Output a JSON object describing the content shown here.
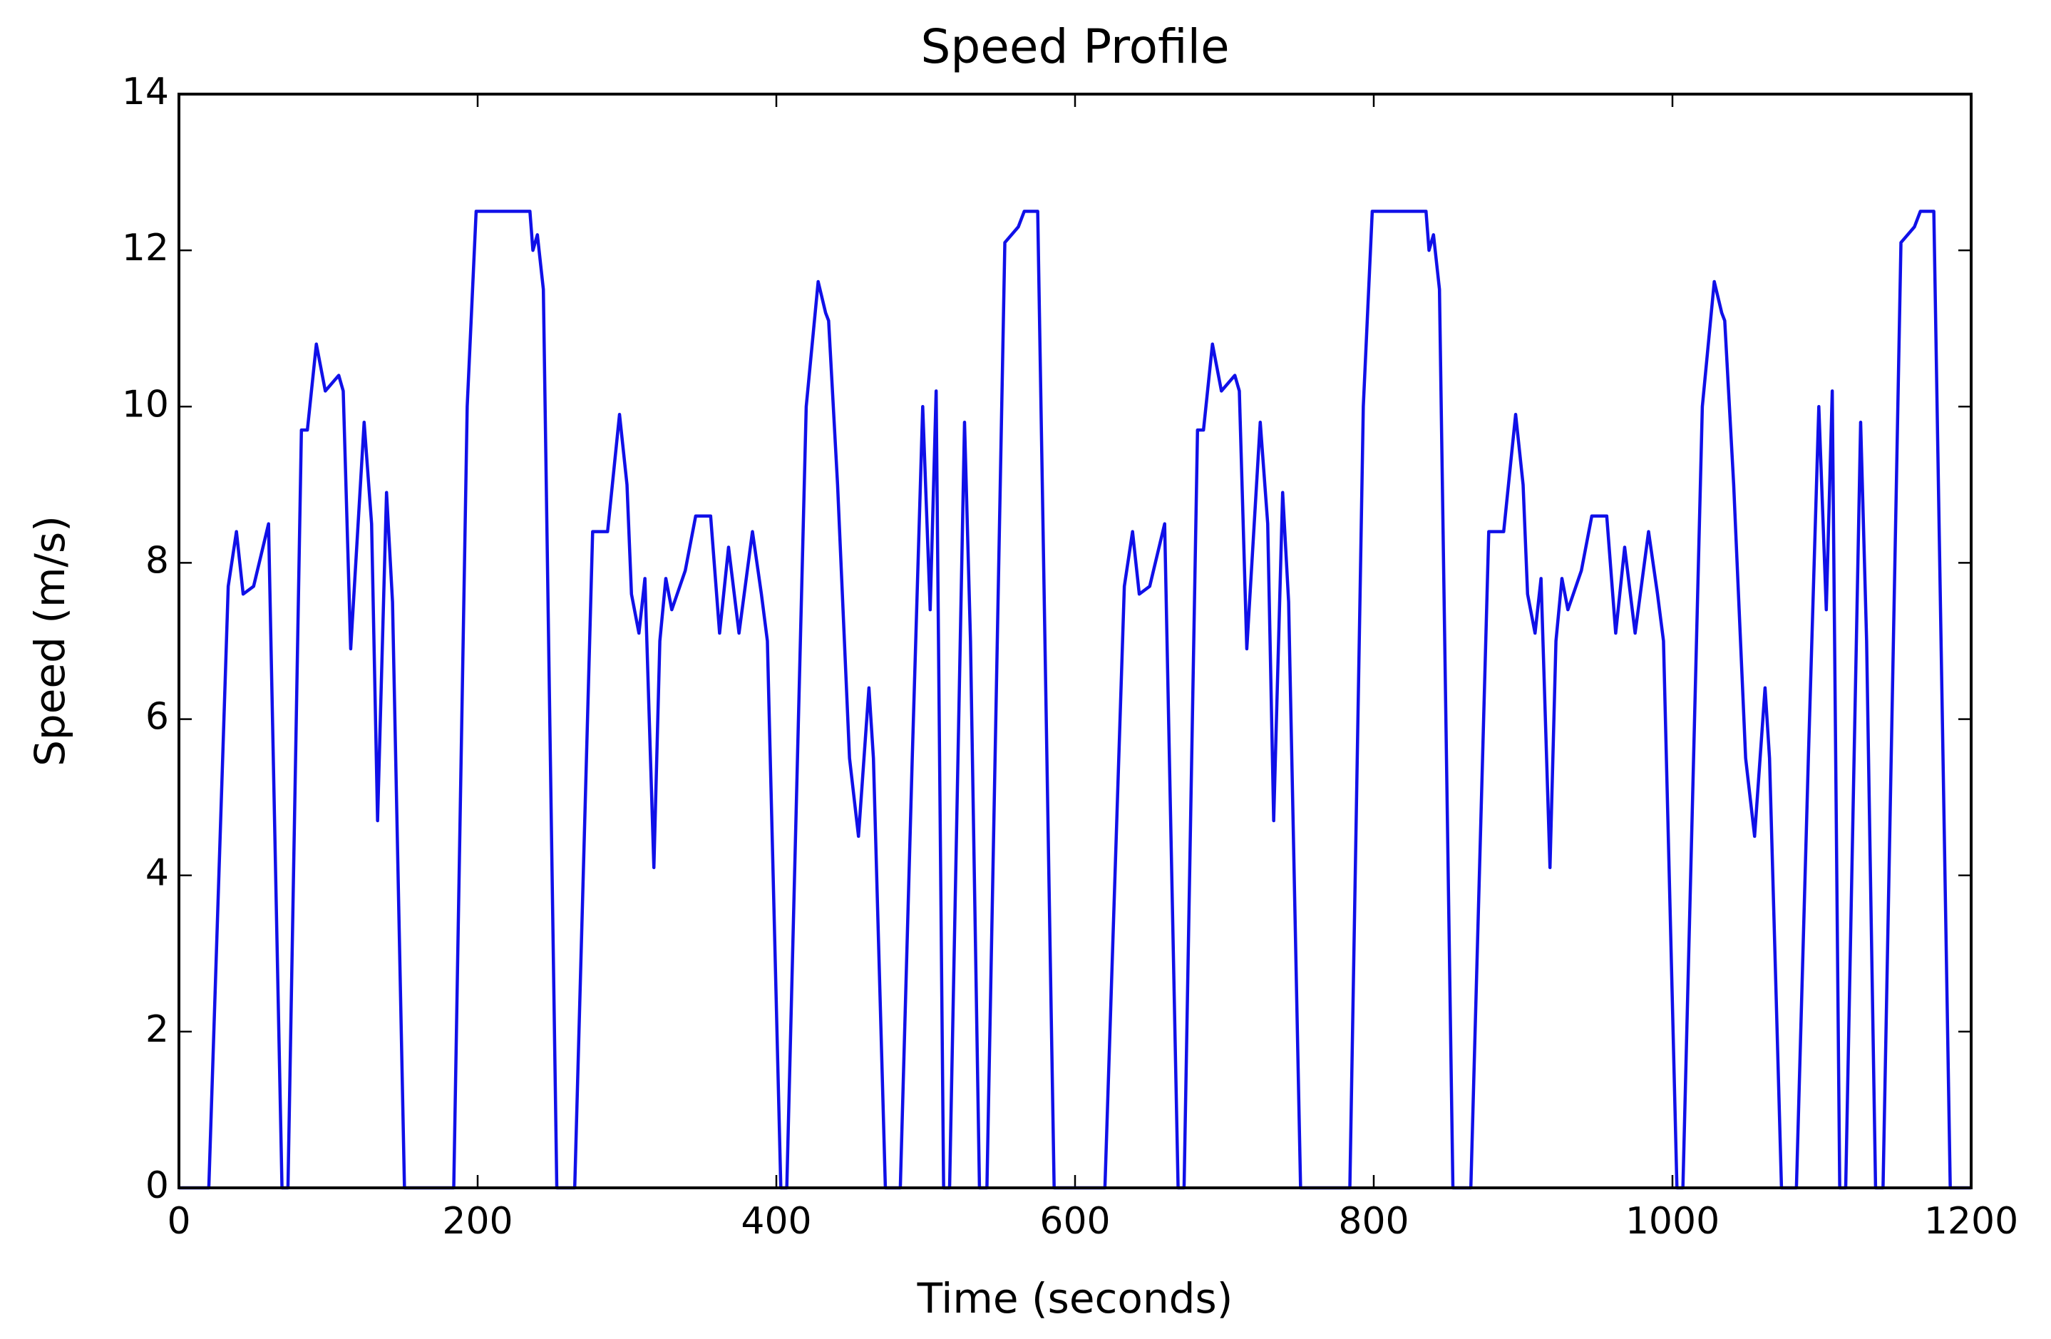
{
  "chart_data": {
    "type": "line",
    "title": "Speed Profile",
    "x_label": "Time (seconds)",
    "y_label": "Speed (m/s)",
    "x": [
      0,
      20,
      33,
      38.5,
      43,
      50,
      60,
      69,
      73,
      82,
      86,
      92,
      98,
      107,
      110,
      115,
      124,
      129,
      133,
      139,
      143,
      151,
      184,
      193,
      199,
      235,
      237,
      240,
      244,
      253,
      265,
      277,
      280,
      287,
      295,
      300,
      303,
      308,
      312,
      318,
      322,
      326,
      330,
      339,
      346,
      356,
      362,
      368,
      375,
      384,
      390,
      394,
      403,
      407,
      420,
      428,
      433,
      435,
      441,
      449,
      455,
      462,
      465,
      473,
      483,
      491,
      498,
      503,
      507,
      512,
      516,
      526,
      530,
      536,
      541,
      553,
      562,
      566,
      575,
      586,
      620,
      633,
      638.5,
      643,
      650,
      660,
      669,
      673,
      682,
      686,
      692,
      698,
      707,
      710,
      715,
      724,
      729,
      733,
      739,
      743,
      751,
      784,
      793,
      799,
      835,
      837,
      840,
      844,
      853,
      865,
      877,
      880,
      887,
      895,
      900,
      903,
      908,
      912,
      918,
      922,
      926,
      930,
      939,
      946,
      956,
      962,
      968,
      975,
      984,
      990,
      994,
      1003,
      1007,
      1020,
      1028,
      1033,
      1035,
      1041,
      1049,
      1055,
      1062,
      1065,
      1073,
      1083,
      1091,
      1098,
      1103,
      1107,
      1112,
      1116,
      1126,
      1130,
      1136,
      1141,
      1153,
      1162,
      1166,
      1175,
      1186,
      1200
    ],
    "series": [
      {
        "color": "#1010e8",
        "values": [
          0,
          0,
          7.7,
          8.4,
          7.6,
          7.7,
          8.5,
          0,
          0,
          9.7,
          9.7,
          10.8,
          10.2,
          10.4,
          10.2,
          6.9,
          9.8,
          8.5,
          4.7,
          8.9,
          7.5,
          0,
          0,
          10,
          12.5,
          12.5,
          12,
          12.2,
          11.5,
          0,
          0,
          8.4,
          8.4,
          8.4,
          9.9,
          9,
          7.6,
          7.1,
          7.8,
          4.1,
          7,
          7.8,
          7.4,
          7.9,
          8.6,
          8.6,
          7.1,
          8.2,
          7.1,
          8.4,
          7.6,
          7,
          0,
          0,
          10,
          11.6,
          11.2,
          11.1,
          9,
          5.5,
          4.5,
          6.4,
          5.5,
          0,
          0,
          5.5,
          10,
          7.4,
          10.2,
          0,
          0,
          9.8,
          7,
          0,
          0,
          12.1,
          12.3,
          12.5,
          12.5,
          0,
          0,
          7.7,
          8.4,
          7.6,
          7.7,
          8.5,
          0,
          0,
          9.7,
          9.7,
          10.8,
          10.2,
          10.4,
          10.2,
          6.9,
          9.8,
          8.5,
          4.7,
          8.9,
          7.5,
          0,
          0,
          10,
          12.5,
          12.5,
          12,
          12.2,
          11.5,
          0,
          0,
          8.4,
          8.4,
          8.4,
          9.9,
          9,
          7.6,
          7.1,
          7.8,
          4.1,
          7,
          7.8,
          7.4,
          7.9,
          8.6,
          8.6,
          7.1,
          8.2,
          7.1,
          8.4,
          7.6,
          7,
          0,
          0,
          10,
          11.6,
          11.2,
          11.1,
          9,
          5.5,
          4.5,
          6.4,
          5.5,
          0,
          0,
          5.5,
          10,
          7.4,
          10.2,
          0,
          0,
          9.8,
          7,
          0,
          0,
          12.1,
          12.3,
          12.5,
          12.5,
          0,
          0
        ]
      }
    ],
    "xlim": [
      0,
      1200
    ],
    "xticks": [
      0,
      200,
      400,
      600,
      800,
      1000,
      1200
    ],
    "ylim": [
      0,
      14
    ],
    "yticks": [
      0,
      2,
      4,
      6,
      8,
      10,
      12,
      14
    ]
  }
}
